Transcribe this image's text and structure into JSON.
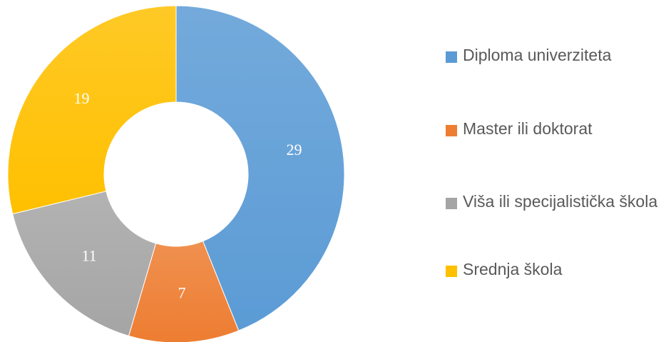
{
  "chart_data": {
    "type": "pie",
    "categories": [
      "Diploma univerziteta",
      "Master ili doktorat",
      "Viša ili specijalistička škola",
      "Srednja škola"
    ],
    "values": [
      29,
      7,
      11,
      19
    ],
    "colors": [
      "#5b9bd5",
      "#ed7d31",
      "#a5a5a5",
      "#ffc000"
    ],
    "legend": "right"
  }
}
